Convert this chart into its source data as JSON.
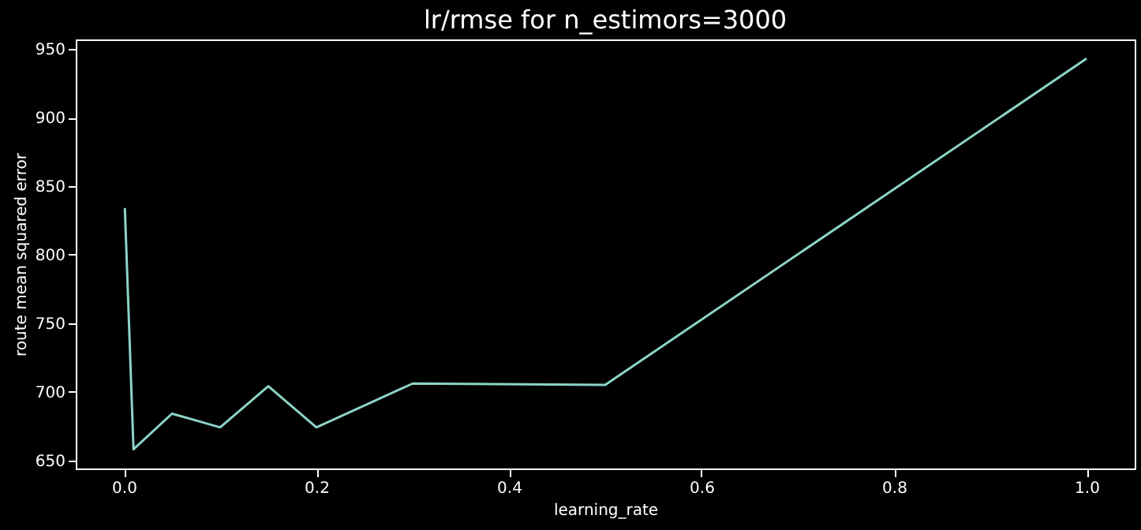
{
  "chart_data": {
    "type": "line",
    "title": "lr/rmse for n_estimors=3000",
    "xlabel": "learning_rate",
    "ylabel": "route mean squared error",
    "x": [
      0.001,
      0.01,
      0.05,
      0.1,
      0.15,
      0.2,
      0.3,
      0.5,
      1.0
    ],
    "series": [
      {
        "color": "#8dd3c7",
        "values": [
          834,
          658,
          684,
          674,
          704,
          674,
          706,
          705,
          943
        ]
      }
    ],
    "xlim": [
      -0.05,
      1.05
    ],
    "xticks": [
      {
        "value": 0,
        "label": "0.0"
      },
      0.2,
      0.4,
      0.6,
      0.8,
      {
        "value": 1,
        "label": "1.0"
      }
    ],
    "ylim": [
      644,
      957
    ],
    "yticks": [
      650,
      700,
      750,
      800,
      850,
      900,
      950
    ],
    "grid": false,
    "marker": "none",
    "line_style": "solid"
  }
}
